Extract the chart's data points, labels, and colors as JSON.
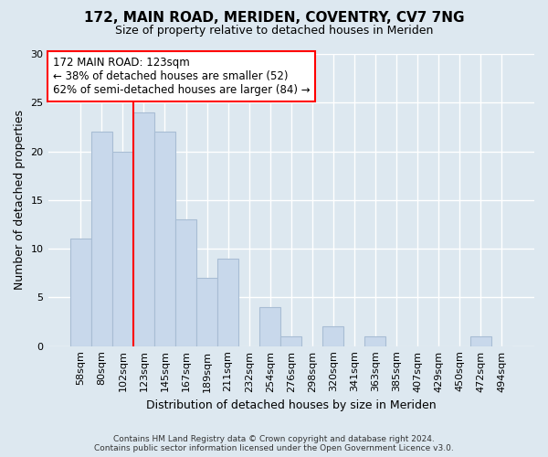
{
  "title": "172, MAIN ROAD, MERIDEN, COVENTRY, CV7 7NG",
  "subtitle": "Size of property relative to detached houses in Meriden",
  "xlabel": "Distribution of detached houses by size in Meriden",
  "ylabel": "Number of detached properties",
  "footer_line1": "Contains HM Land Registry data © Crown copyright and database right 2024.",
  "footer_line2": "Contains public sector information licensed under the Open Government Licence v3.0.",
  "categories": [
    "58sqm",
    "80sqm",
    "102sqm",
    "123sqm",
    "145sqm",
    "167sqm",
    "189sqm",
    "211sqm",
    "232sqm",
    "254sqm",
    "276sqm",
    "298sqm",
    "320sqm",
    "341sqm",
    "363sqm",
    "385sqm",
    "407sqm",
    "429sqm",
    "450sqm",
    "472sqm",
    "494sqm"
  ],
  "values": [
    11,
    22,
    20,
    24,
    22,
    13,
    7,
    9,
    0,
    4,
    1,
    0,
    2,
    0,
    1,
    0,
    0,
    0,
    0,
    1,
    0
  ],
  "bar_color": "#c8d8eb",
  "bar_edge_color": "#a8bdd4",
  "vline_color": "red",
  "annotation_title": "172 MAIN ROAD: 123sqm",
  "annotation_line2": "← 38% of detached houses are smaller (52)",
  "annotation_line3": "62% of semi-detached houses are larger (84) →",
  "annotation_box_edge": "red",
  "ylim": [
    0,
    30
  ],
  "yticks": [
    0,
    5,
    10,
    15,
    20,
    25,
    30
  ],
  "background_color": "#dde8f0",
  "plot_bg_color": "#dde8f0",
  "grid_color": "#ffffff"
}
